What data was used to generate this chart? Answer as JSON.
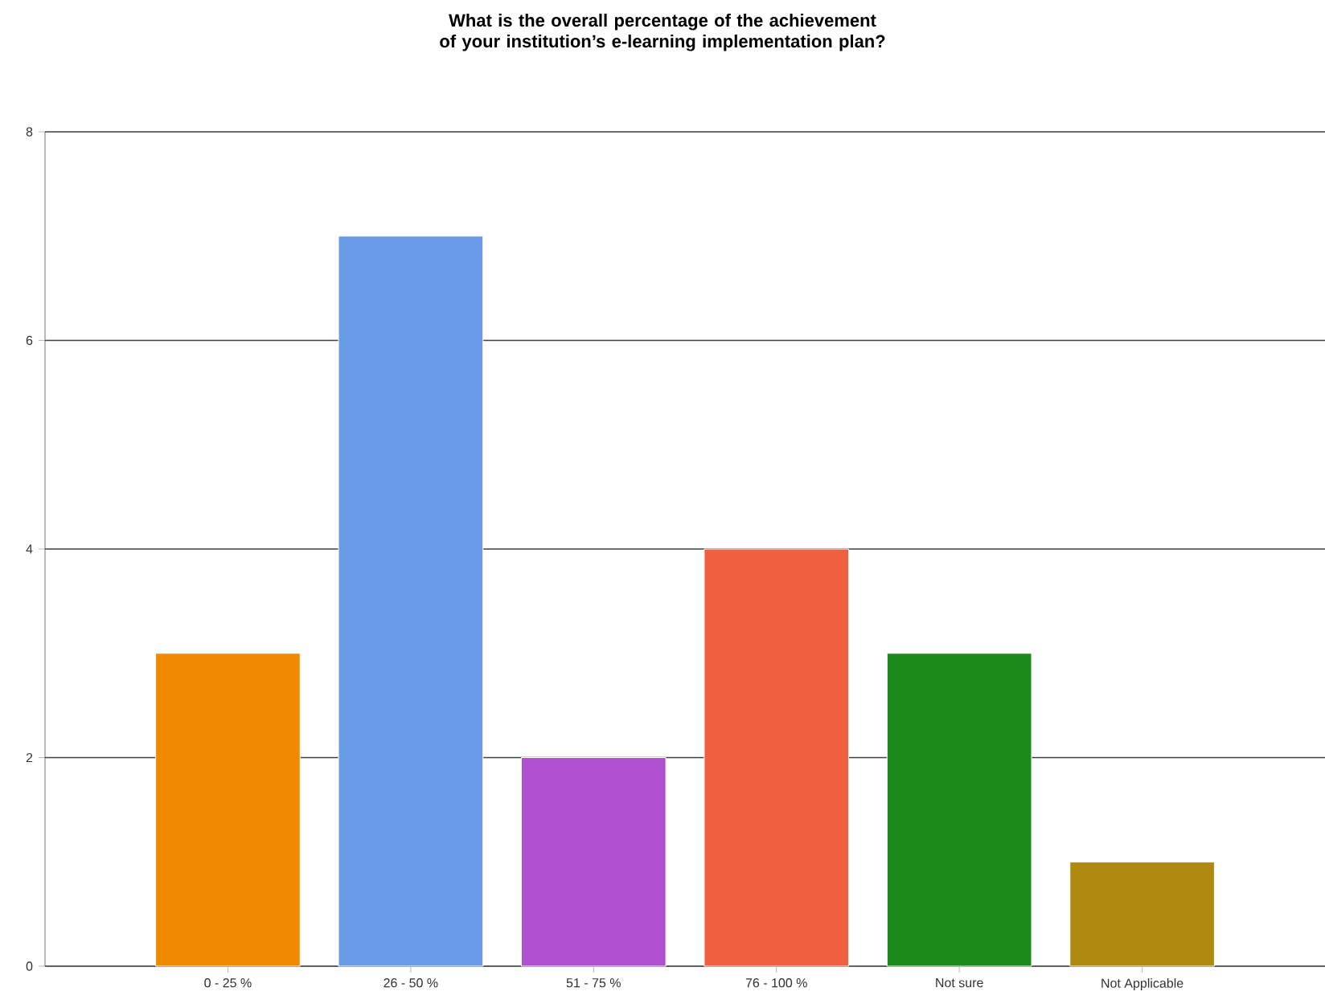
{
  "chart_data": {
    "type": "bar",
    "title": "What is the overall percentage of the achievement of your institution’s e-learning implementation plan?",
    "categories": [
      "0 - 25 %",
      "26 - 50 %",
      "51 - 75 %",
      "76 - 100 %",
      "Not sure",
      "Not Applicable"
    ],
    "values": [
      3,
      7,
      2,
      4,
      3,
      1
    ],
    "colors": [
      "#f08a00",
      "#6a9be8",
      "#b050d0",
      "#f06040",
      "#1a8a1a",
      "#b08a10"
    ],
    "ylim": [
      0,
      8
    ],
    "yticks": [
      0,
      2,
      4,
      6,
      8
    ],
    "grid": "y"
  }
}
